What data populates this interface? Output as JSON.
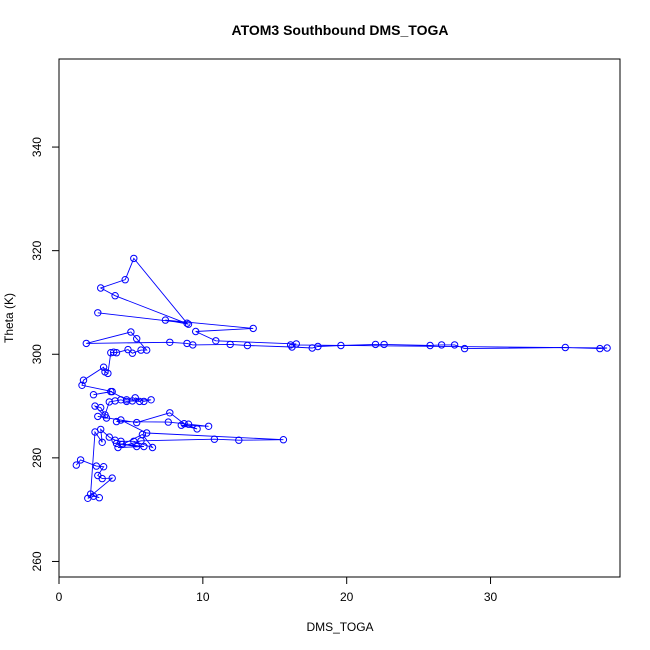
{
  "chart_data": {
    "type": "line",
    "title": "ATOM3 Southbound DMS_TOGA",
    "xlabel": "DMS_TOGA",
    "ylabel": "Theta (K)",
    "xlim": [
      0,
      39
    ],
    "ylim": [
      257,
      357
    ],
    "xticks": [
      0,
      10,
      20,
      30
    ],
    "yticks": [
      260,
      280,
      300,
      320,
      340
    ],
    "grid": false,
    "legend": "none",
    "colors": {
      "series": "#0000ff",
      "axes": "#000000"
    },
    "series": [
      {
        "marker": "circle-open",
        "points": [
          [
            1.2,
            278.6
          ],
          [
            1.5,
            279.6
          ],
          [
            2.6,
            278.4
          ],
          [
            3.1,
            278.3
          ],
          [
            2.7,
            276.6
          ],
          [
            3.0,
            276.0
          ],
          [
            3.7,
            276.1
          ],
          [
            2.0,
            272.2
          ],
          [
            2.4,
            272.6
          ],
          [
            2.8,
            272.3
          ],
          [
            2.2,
            273.0
          ],
          [
            2.5,
            285.0
          ],
          [
            3.0,
            283.0
          ],
          [
            2.9,
            285.5
          ],
          [
            3.5,
            284.0
          ],
          [
            3.9,
            283.4
          ],
          [
            4.3,
            283.2
          ],
          [
            5.2,
            283.2
          ],
          [
            6.5,
            282.0
          ],
          [
            5.8,
            284.5
          ],
          [
            4.4,
            282.6
          ],
          [
            5.4,
            282.2
          ],
          [
            4.0,
            282.8
          ],
          [
            5.9,
            282.2
          ],
          [
            4.1,
            282.0
          ],
          [
            5.7,
            283.3
          ],
          [
            10.8,
            283.6
          ],
          [
            12.5,
            283.4
          ],
          [
            15.6,
            283.5
          ],
          [
            6.1,
            284.8
          ],
          [
            4.3,
            287.3
          ],
          [
            4.0,
            287.0
          ],
          [
            7.6,
            286.9
          ],
          [
            9.0,
            286.5
          ],
          [
            10.4,
            286.1
          ],
          [
            8.5,
            286.3
          ],
          [
            9.6,
            285.6
          ],
          [
            8.7,
            286.6
          ],
          [
            7.7,
            288.7
          ],
          [
            5.4,
            286.8
          ],
          [
            2.7,
            288.0
          ],
          [
            3.3,
            287.7
          ],
          [
            2.5,
            290.0
          ],
          [
            2.9,
            289.7
          ],
          [
            3.2,
            288.3
          ],
          [
            3.5,
            290.8
          ],
          [
            3.9,
            291.0
          ],
          [
            4.3,
            291.2
          ],
          [
            4.7,
            290.9
          ],
          [
            5.1,
            291.0
          ],
          [
            5.6,
            290.9
          ],
          [
            5.3,
            291.6
          ],
          [
            5.9,
            290.9
          ],
          [
            6.4,
            291.2
          ],
          [
            4.7,
            291.2
          ],
          [
            3.6,
            292.8
          ],
          [
            2.4,
            292.2
          ],
          [
            3.7,
            292.8
          ],
          [
            1.6,
            294.0
          ],
          [
            1.7,
            295.0
          ],
          [
            3.1,
            297.5
          ],
          [
            3.2,
            296.6
          ],
          [
            3.4,
            296.3
          ],
          [
            3.6,
            300.3
          ],
          [
            3.8,
            300.4
          ],
          [
            4.0,
            300.3
          ],
          [
            4.8,
            300.9
          ],
          [
            5.1,
            300.2
          ],
          [
            5.7,
            300.8
          ],
          [
            6.1,
            300.8
          ],
          [
            5.4,
            303.0
          ],
          [
            5.0,
            304.3
          ],
          [
            1.9,
            302.1
          ],
          [
            7.7,
            302.3
          ],
          [
            8.9,
            302.1
          ],
          [
            9.3,
            301.8
          ],
          [
            11.9,
            301.9
          ],
          [
            13.1,
            301.7
          ],
          [
            16.2,
            301.4
          ],
          [
            17.6,
            301.2
          ],
          [
            18.0,
            301.5
          ],
          [
            19.6,
            301.7
          ],
          [
            22.0,
            301.9
          ],
          [
            22.6,
            301.9
          ],
          [
            25.8,
            301.7
          ],
          [
            26.6,
            301.8
          ],
          [
            27.5,
            301.8
          ],
          [
            28.2,
            301.1
          ],
          [
            35.2,
            301.3
          ],
          [
            37.6,
            301.1
          ],
          [
            38.1,
            301.2
          ],
          [
            16.1,
            301.8
          ],
          [
            16.5,
            302.0
          ],
          [
            10.9,
            302.6
          ],
          [
            9.5,
            304.4
          ],
          [
            13.5,
            305.0
          ],
          [
            7.4,
            306.6
          ],
          [
            9.0,
            305.8
          ],
          [
            3.9,
            311.3
          ],
          [
            2.9,
            312.8
          ],
          [
            4.6,
            314.4
          ],
          [
            5.2,
            318.5
          ],
          [
            8.9,
            306.0
          ],
          [
            2.7,
            308.0
          ]
        ]
      }
    ]
  }
}
